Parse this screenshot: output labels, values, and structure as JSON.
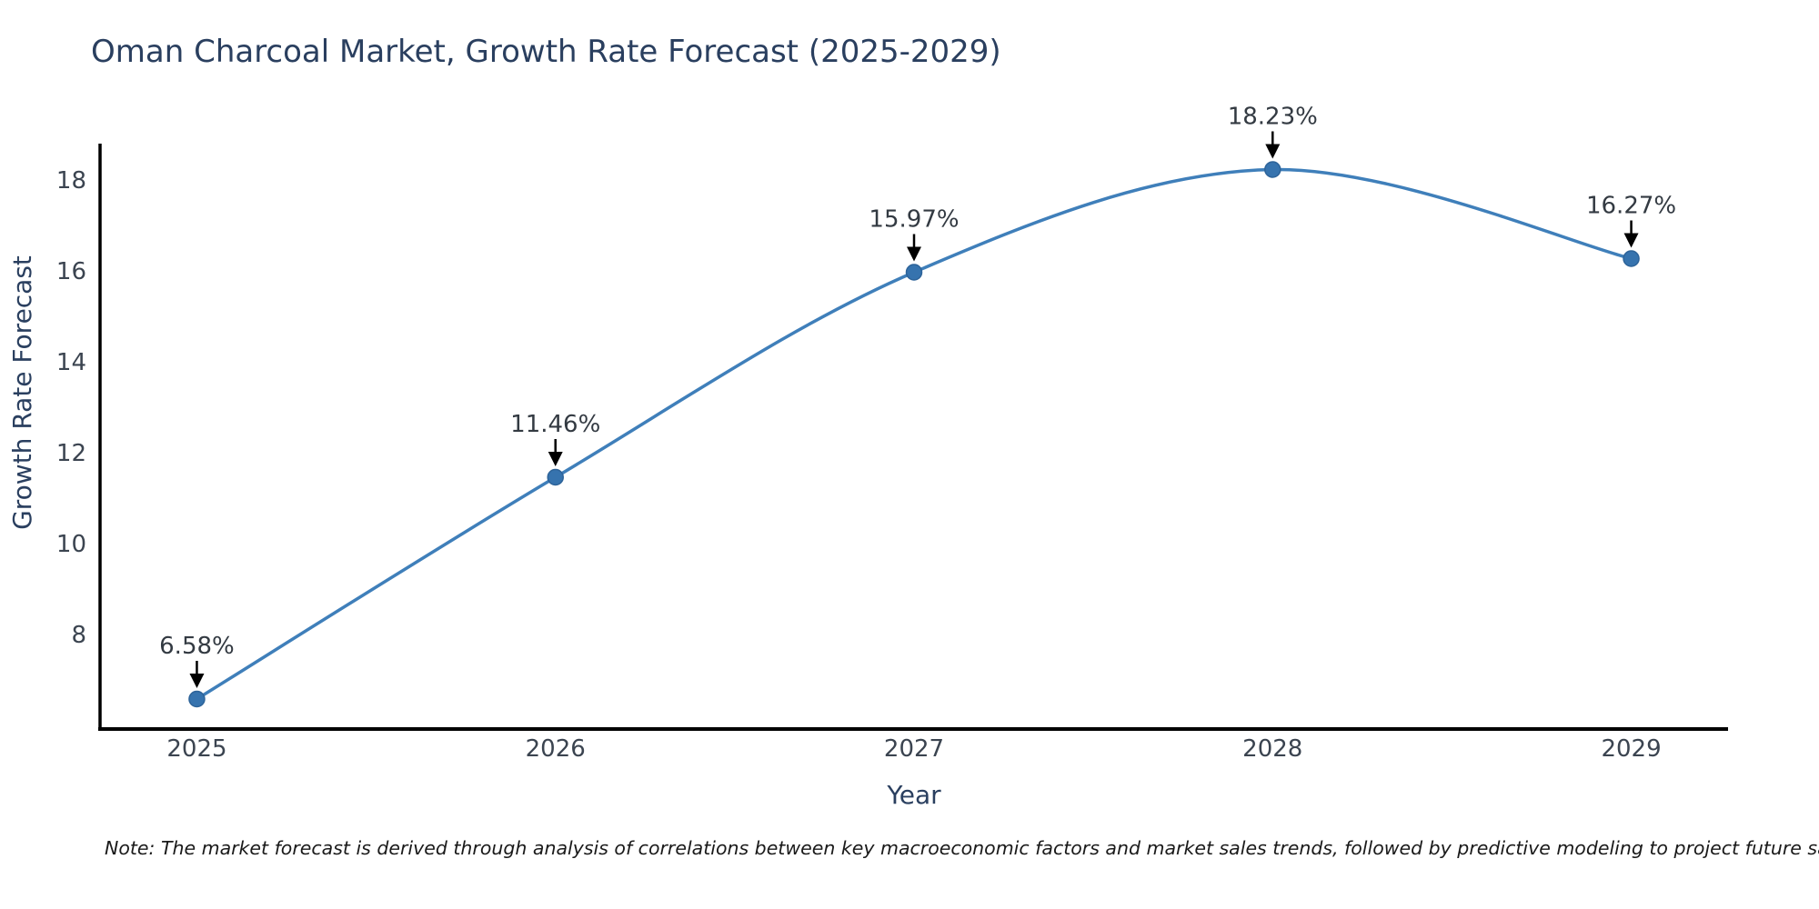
{
  "page": {
    "background": "#ffffff"
  },
  "chart_data": {
    "type": "line",
    "title": "Oman Charcoal Market, Growth Rate Forecast (2025-2029)",
    "xlabel": "Year",
    "ylabel": "Growth Rate Forecast",
    "x": [
      2025,
      2026,
      2027,
      2028,
      2029
    ],
    "values": [
      6.58,
      11.46,
      15.97,
      18.23,
      16.27
    ],
    "point_labels": [
      "6.58%",
      "11.46%",
      "15.97%",
      "18.23%",
      "16.27%"
    ],
    "y_ticks": [
      8,
      10,
      12,
      14,
      16,
      18
    ],
    "x_tick_labels": [
      "2025",
      "2026",
      "2027",
      "2028",
      "2029"
    ],
    "ylim": [
      5.92,
      18.76
    ],
    "xlim": [
      2024.73,
      2029.27
    ],
    "grid": false,
    "legend_position": "none",
    "line_shape": "spline",
    "colors": {
      "line": "#3f7fba",
      "marker": "#3673ae",
      "marker_edge": "#2d6399",
      "annotation_arrow": "#000000",
      "axis_line": "#000000",
      "title_text": "#2a3f5f",
      "axis_title_text": "#2a3f5f",
      "tick_text": "#3b4450",
      "annotation_text": "#333a42",
      "note_text": "#1a1a1a"
    }
  },
  "note": {
    "text": "Note: The market forecast is derived through analysis of correlations between key macroeconomic factors and market sales trends, followed by predictive modeling to project future sales"
  }
}
